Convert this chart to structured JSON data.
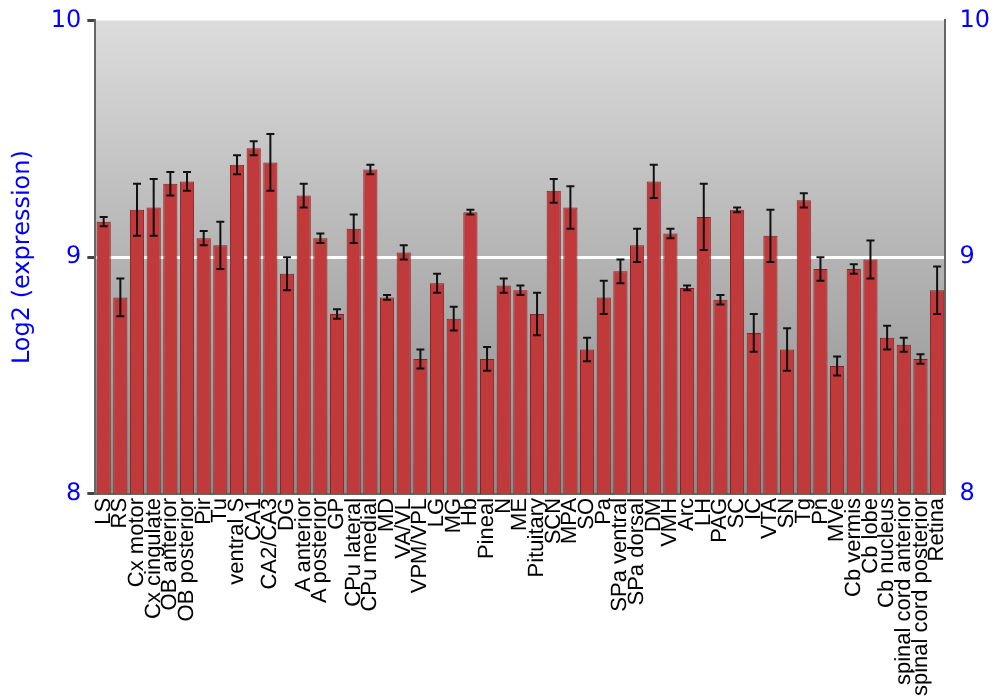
{
  "chart_data": {
    "type": "bar",
    "ylabel": "Log2 (expression)",
    "categories": [
      "LS",
      "RS",
      "Cx motor",
      "Cx cingulate",
      "OB anterior",
      "OB posterior",
      "Pir",
      "Tu",
      "ventral S",
      "CA1",
      "CA2/CA3",
      "DG",
      "A anterior",
      "A posterior",
      "GP",
      "CPu lateral",
      "CPu medial",
      "MD",
      "VA/VL",
      "VPM/VPL",
      "LG",
      "MG",
      "Hb",
      "Pineal",
      "N",
      "ME",
      "Pituitary",
      "SCN",
      "MPA",
      "SO",
      "Pa",
      "SPa ventral",
      "SPa dorsal",
      "DM",
      "VMH",
      "Arc",
      "LH",
      "PAG",
      "SC",
      "IC",
      "VTA",
      "SN",
      "Tg",
      "Pn",
      "MVe",
      "Cb vermis",
      "Cb lobe",
      "Cb nucleus",
      "spinal cord anterior",
      "spinal cord posterior",
      "Retina"
    ],
    "values": [
      9.15,
      8.83,
      9.2,
      9.21,
      9.31,
      9.32,
      9.08,
      9.05,
      9.39,
      9.46,
      9.4,
      8.93,
      9.26,
      9.08,
      8.76,
      9.12,
      9.37,
      8.83,
      9.02,
      8.57,
      8.89,
      8.74,
      9.19,
      8.57,
      8.88,
      8.86,
      8.76,
      9.28,
      9.21,
      8.61,
      8.83,
      8.94,
      9.05,
      9.32,
      9.1,
      8.87,
      9.17,
      8.82,
      9.2,
      8.68,
      9.09,
      8.61,
      9.24,
      8.95,
      8.54,
      8.95,
      8.99,
      8.66,
      8.63,
      8.57,
      8.86
    ],
    "errors": [
      0.02,
      0.08,
      0.11,
      0.12,
      0.05,
      0.04,
      0.03,
      0.1,
      0.04,
      0.03,
      0.12,
      0.07,
      0.05,
      0.02,
      0.02,
      0.06,
      0.02,
      0.01,
      0.03,
      0.04,
      0.04,
      0.05,
      0.01,
      0.05,
      0.03,
      0.02,
      0.09,
      0.05,
      0.09,
      0.05,
      0.07,
      0.05,
      0.07,
      0.07,
      0.02,
      0.01,
      0.14,
      0.02,
      0.01,
      0.08,
      0.11,
      0.09,
      0.03,
      0.05,
      0.04,
      0.02,
      0.08,
      0.05,
      0.03,
      0.02,
      0.1
    ],
    "color": "#c0393b",
    "ylim": [
      8,
      10
    ],
    "yticks": [
      8,
      9,
      10
    ],
    "y2lim": [
      8,
      10
    ],
    "y2ticks": [
      8,
      9,
      10
    ],
    "grid": "y"
  }
}
